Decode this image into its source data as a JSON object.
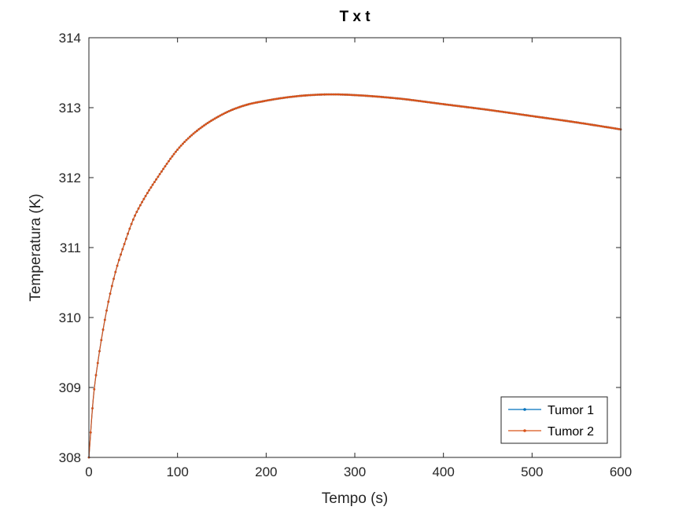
{
  "chart_data": {
    "type": "line",
    "title": "T x t",
    "xlabel": "Tempo (s)",
    "ylabel": "Temperatura (K)",
    "xlim": [
      0,
      600
    ],
    "ylim": [
      308,
      314
    ],
    "xticks": [
      0,
      100,
      200,
      300,
      400,
      500,
      600
    ],
    "yticks": [
      308,
      309,
      310,
      311,
      312,
      313,
      314
    ],
    "xtick_labels": [
      "0",
      "100",
      "200",
      "300",
      "400",
      "500",
      "600"
    ],
    "ytick_labels": [
      "308",
      "309",
      "310",
      "311",
      "312",
      "313",
      "314"
    ],
    "grid": false,
    "legend_position": "bottom-right",
    "series": [
      {
        "name": "Tumor 1",
        "color": "#0072BD",
        "marker": "dot",
        "x": [
          0,
          5,
          10,
          20,
          30,
          40,
          50,
          60,
          80,
          100,
          120,
          150,
          175,
          200,
          225,
          250,
          275,
          300,
          350,
          400,
          450,
          500,
          550,
          600
        ],
        "y": [
          308.0,
          308.85,
          309.35,
          310.1,
          310.65,
          311.05,
          311.4,
          311.65,
          312.05,
          312.4,
          312.65,
          312.9,
          313.03,
          313.1,
          313.15,
          313.18,
          313.19,
          313.18,
          313.13,
          313.05,
          312.97,
          312.88,
          312.79,
          312.69
        ]
      },
      {
        "name": "Tumor 2",
        "color": "#D95319",
        "marker": "dot",
        "x": [
          0,
          5,
          10,
          20,
          30,
          40,
          50,
          60,
          80,
          100,
          120,
          150,
          175,
          200,
          225,
          250,
          275,
          300,
          350,
          400,
          450,
          500,
          550,
          600
        ],
        "y": [
          308.0,
          308.85,
          309.35,
          310.1,
          310.65,
          311.05,
          311.4,
          311.65,
          312.05,
          312.4,
          312.65,
          312.9,
          313.03,
          313.1,
          313.15,
          313.18,
          313.19,
          313.18,
          313.13,
          313.05,
          312.97,
          312.88,
          312.79,
          312.69
        ]
      }
    ]
  }
}
